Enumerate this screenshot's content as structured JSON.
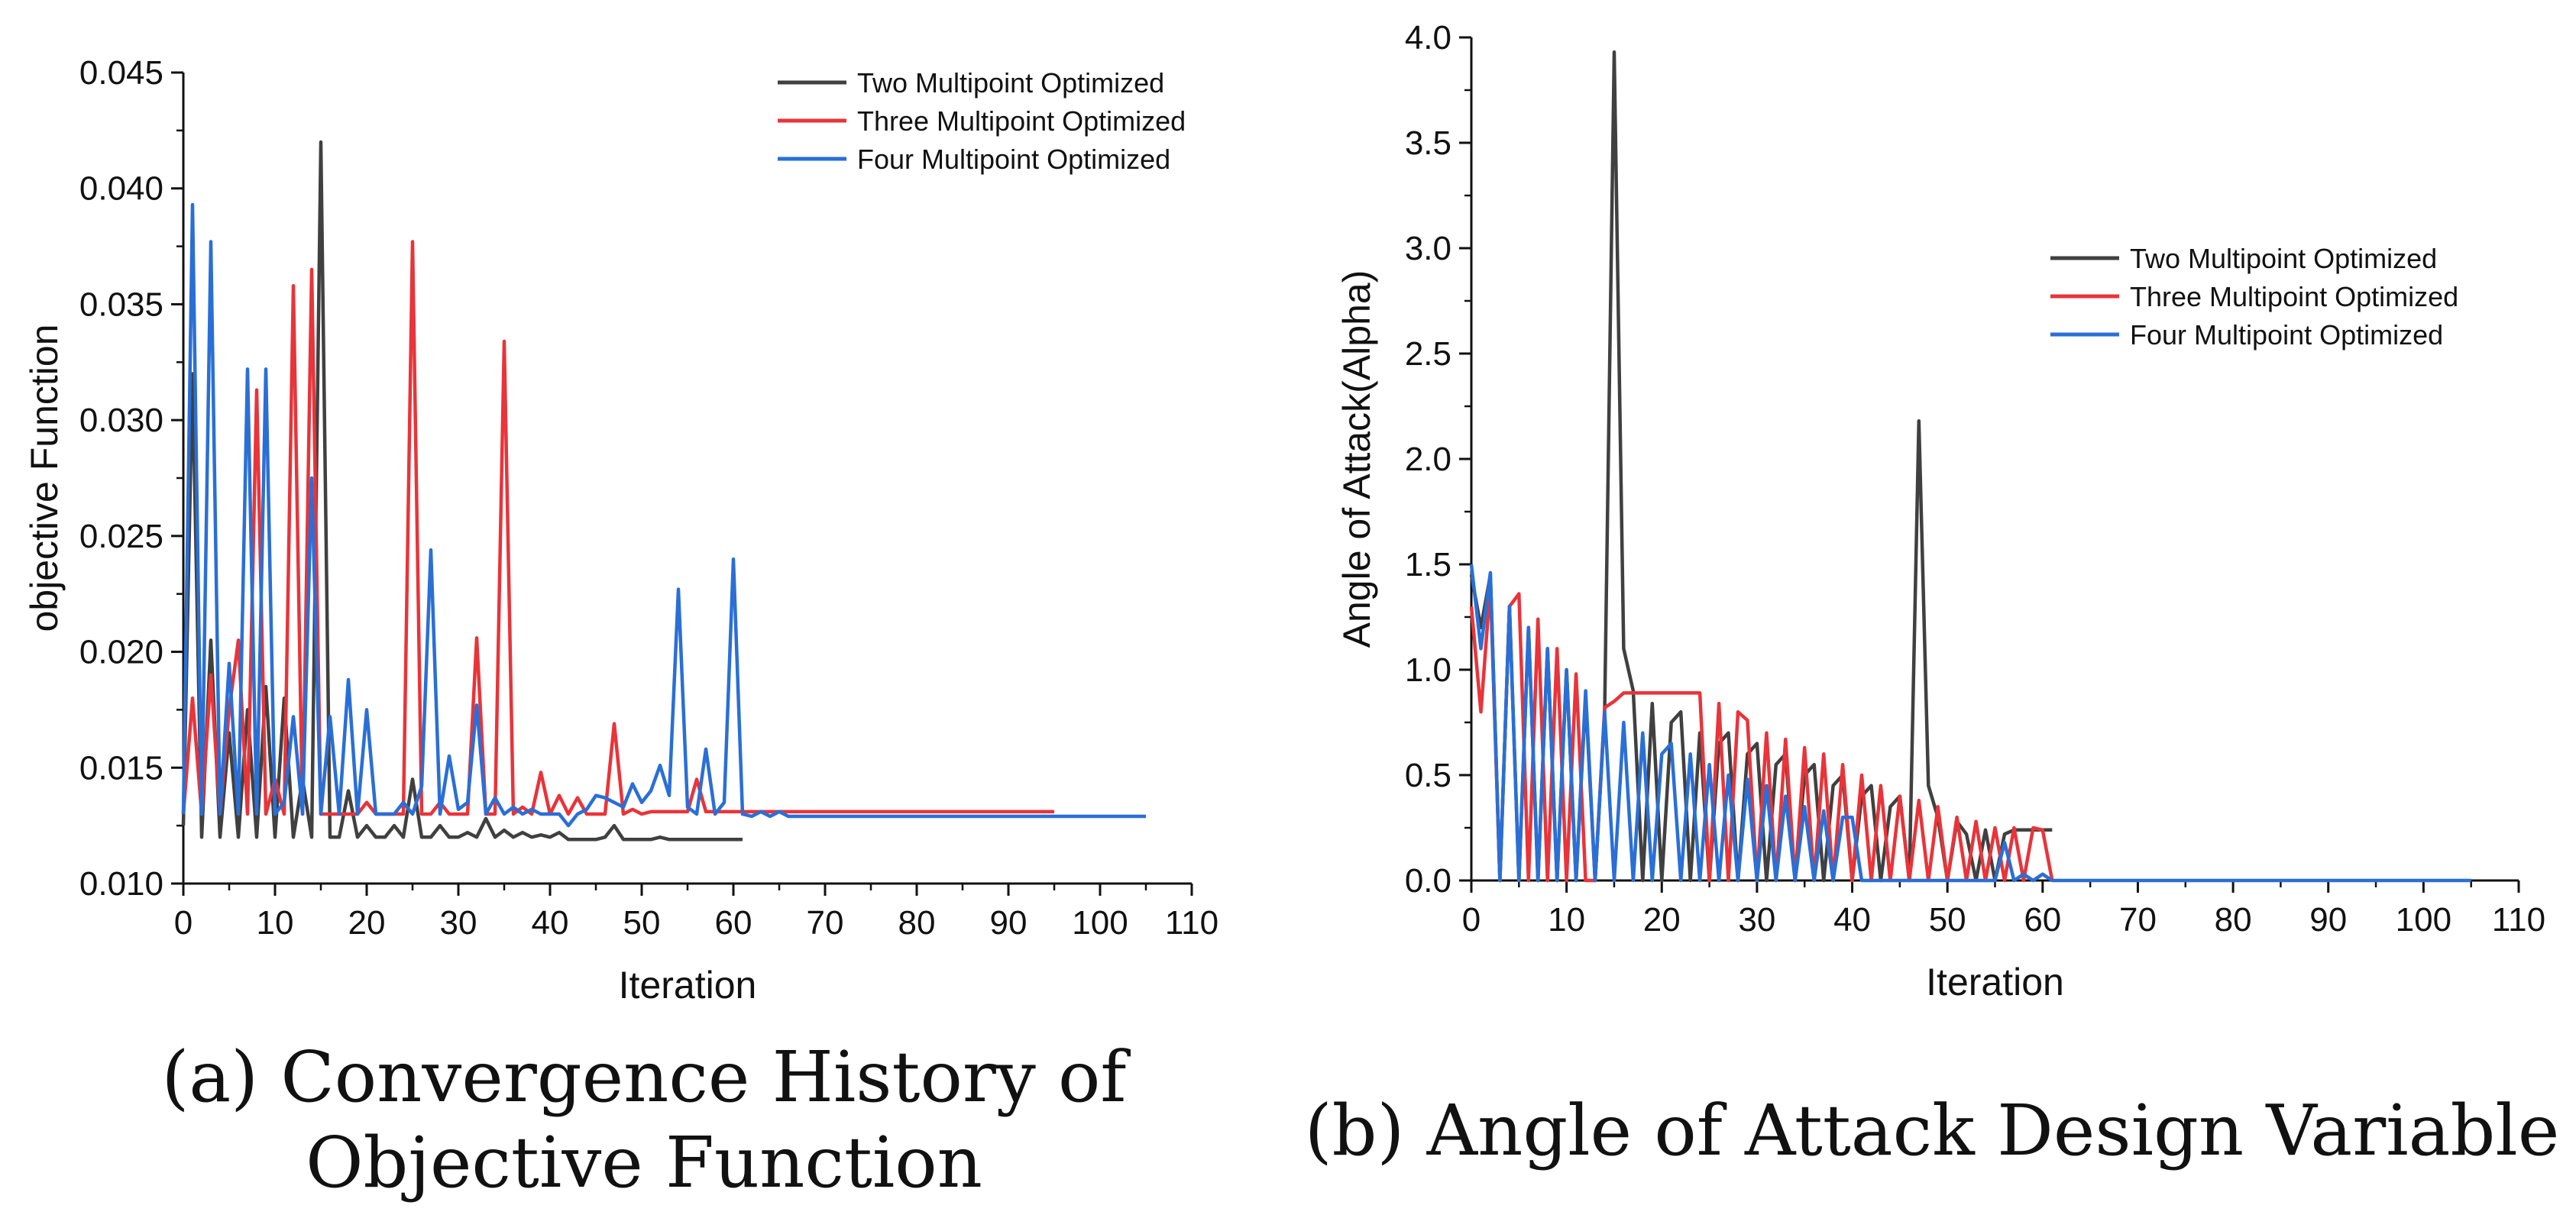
{
  "chart_data": [
    {
      "type": "line",
      "caption": "(a) Convergence History of Objective Function",
      "xlabel": "Iteration",
      "ylabel": "objective Function",
      "xlim": [
        0,
        110
      ],
      "ylim": [
        0.01,
        0.045
      ],
      "xticks": [
        "0",
        "10",
        "20",
        "30",
        "40",
        "50",
        "60",
        "70",
        "80",
        "90",
        "100",
        "110"
      ],
      "yticks": [
        "0.010",
        "0.015",
        "0.020",
        "0.025",
        "0.030",
        "0.035",
        "0.040",
        "0.045"
      ],
      "legend_position": "top-right",
      "series": [
        {
          "name": "Two Multipoint Optimized",
          "color": "#404040",
          "x": [
            0,
            1,
            2,
            3,
            4,
            5,
            6,
            7,
            8,
            9,
            10,
            11,
            12,
            13,
            14,
            15,
            16,
            17,
            18,
            19,
            20,
            21,
            22,
            23,
            24,
            25,
            26,
            27,
            28,
            29,
            30,
            31,
            32,
            33,
            34,
            35,
            36,
            37,
            38,
            39,
            40,
            41,
            42,
            43,
            44,
            45,
            46,
            47,
            48,
            49,
            50,
            51,
            52,
            53,
            54,
            55,
            56,
            57,
            58,
            59,
            60,
            61
          ],
          "y": [
            0.0125,
            0.032,
            0.012,
            0.0205,
            0.012,
            0.0165,
            0.012,
            0.0175,
            0.012,
            0.0185,
            0.012,
            0.018,
            0.012,
            0.0145,
            0.012,
            0.042,
            0.012,
            0.012,
            0.014,
            0.012,
            0.0125,
            0.012,
            0.012,
            0.0125,
            0.012,
            0.0145,
            0.012,
            0.012,
            0.0125,
            0.012,
            0.012,
            0.0122,
            0.012,
            0.0128,
            0.012,
            0.0123,
            0.012,
            0.0122,
            0.012,
            0.0121,
            0.012,
            0.0122,
            0.0119,
            0.0119,
            0.0119,
            0.0119,
            0.012,
            0.0125,
            0.0119,
            0.0119,
            0.0119,
            0.0119,
            0.012,
            0.0119,
            0.0119,
            0.0119,
            0.0119,
            0.0119,
            0.0119,
            0.0119,
            0.0119,
            0.0119
          ]
        },
        {
          "name": "Three Multipoint Optimized",
          "color": "#e8343a",
          "x": [
            0,
            1,
            2,
            3,
            4,
            5,
            6,
            7,
            8,
            9,
            10,
            11,
            12,
            13,
            14,
            15,
            16,
            17,
            18,
            19,
            20,
            21,
            22,
            23,
            24,
            25,
            26,
            27,
            28,
            29,
            30,
            31,
            32,
            33,
            34,
            35,
            36,
            37,
            38,
            39,
            40,
            41,
            42,
            43,
            44,
            45,
            46,
            47,
            48,
            49,
            50,
            51,
            52,
            53,
            54,
            55,
            56,
            57,
            58,
            59,
            60,
            65,
            70,
            75,
            80,
            85,
            90,
            95
          ],
          "y": [
            0.013,
            0.018,
            0.013,
            0.019,
            0.013,
            0.0175,
            0.0205,
            0.013,
            0.0313,
            0.013,
            0.0145,
            0.013,
            0.0358,
            0.013,
            0.0365,
            0.013,
            0.013,
            0.013,
            0.013,
            0.013,
            0.0135,
            0.013,
            0.013,
            0.013,
            0.013,
            0.0377,
            0.013,
            0.013,
            0.0135,
            0.013,
            0.013,
            0.013,
            0.0206,
            0.013,
            0.013,
            0.0334,
            0.013,
            0.0133,
            0.013,
            0.0148,
            0.013,
            0.0138,
            0.013,
            0.0137,
            0.013,
            0.013,
            0.013,
            0.0169,
            0.013,
            0.0132,
            0.013,
            0.0131,
            0.0131,
            0.0131,
            0.0131,
            0.0131,
            0.0145,
            0.0131,
            0.0131,
            0.0131,
            0.0131,
            0.0131,
            0.0131,
            0.0131,
            0.0131,
            0.0131,
            0.0131,
            0.0131
          ]
        },
        {
          "name": "Four Multipoint Optimized",
          "color": "#2a6fd6",
          "x": [
            0,
            1,
            2,
            3,
            4,
            5,
            6,
            7,
            8,
            9,
            10,
            11,
            12,
            13,
            14,
            15,
            16,
            17,
            18,
            19,
            20,
            21,
            22,
            23,
            24,
            25,
            26,
            27,
            28,
            29,
            30,
            31,
            32,
            33,
            34,
            35,
            36,
            37,
            38,
            39,
            40,
            41,
            42,
            43,
            44,
            45,
            46,
            47,
            48,
            49,
            50,
            51,
            52,
            53,
            54,
            55,
            56,
            57,
            58,
            59,
            60,
            61,
            62,
            63,
            64,
            65,
            66,
            67,
            68,
            69,
            70,
            75,
            80,
            85,
            90,
            95,
            100,
            105
          ],
          "y": [
            0.013,
            0.0393,
            0.013,
            0.0377,
            0.013,
            0.0195,
            0.013,
            0.0322,
            0.013,
            0.0322,
            0.013,
            0.0135,
            0.0172,
            0.013,
            0.0275,
            0.013,
            0.0172,
            0.013,
            0.0188,
            0.013,
            0.0175,
            0.013,
            0.013,
            0.013,
            0.0135,
            0.013,
            0.0142,
            0.0244,
            0.013,
            0.0155,
            0.0132,
            0.0135,
            0.0177,
            0.013,
            0.0137,
            0.013,
            0.0133,
            0.013,
            0.0132,
            0.013,
            0.013,
            0.013,
            0.0125,
            0.013,
            0.0132,
            0.0138,
            0.0137,
            0.0135,
            0.0133,
            0.0143,
            0.0135,
            0.014,
            0.0151,
            0.0138,
            0.0227,
            0.0133,
            0.013,
            0.0158,
            0.013,
            0.0135,
            0.024,
            0.013,
            0.0129,
            0.0131,
            0.0129,
            0.0131,
            0.0129,
            0.0129,
            0.0129,
            0.0129,
            0.0129,
            0.0129,
            0.0129,
            0.0129,
            0.0129,
            0.0129,
            0.0129,
            0.0129
          ]
        }
      ]
    },
    {
      "type": "line",
      "caption": "(b) Angle of Attack Design Variable",
      "xlabel": "Iteration",
      "ylabel": "Angle of Attack(Alpha)",
      "xlim": [
        0,
        110
      ],
      "ylim": [
        0.0,
        4.0
      ],
      "xticks": [
        "0",
        "10",
        "20",
        "30",
        "40",
        "50",
        "60",
        "70",
        "80",
        "90",
        "100",
        "110"
      ],
      "yticks": [
        "0.0",
        "0.5",
        "1.0",
        "1.5",
        "2.0",
        "2.5",
        "3.0",
        "3.5",
        "4.0"
      ],
      "legend_position": "upper-right",
      "series": [
        {
          "name": "Two Multipoint Optimized",
          "color": "#404040",
          "x": [
            0,
            1,
            2,
            3,
            4,
            5,
            6,
            7,
            8,
            9,
            10,
            11,
            12,
            13,
            14,
            15,
            16,
            17,
            18,
            19,
            20,
            21,
            22,
            23,
            24,
            25,
            26,
            27,
            28,
            29,
            30,
            31,
            32,
            33,
            34,
            35,
            36,
            37,
            38,
            39,
            40,
            41,
            42,
            43,
            44,
            45,
            46,
            47,
            48,
            49,
            50,
            51,
            52,
            53,
            54,
            55,
            56,
            57,
            58,
            59,
            60,
            61
          ],
          "y": [
            1.45,
            1.2,
            1.45,
            0.0,
            1.3,
            0.0,
            1.2,
            0.0,
            1.1,
            0.0,
            1.0,
            0.0,
            0.87,
            0.0,
            0.8,
            3.93,
            1.1,
            0.9,
            0.0,
            0.84,
            0.0,
            0.75,
            0.8,
            0.0,
            0.7,
            0.0,
            0.65,
            0.7,
            0.0,
            0.6,
            0.65,
            0.0,
            0.55,
            0.6,
            0.0,
            0.5,
            0.55,
            0.0,
            0.45,
            0.5,
            0.0,
            0.4,
            0.45,
            0.0,
            0.35,
            0.4,
            0.0,
            2.18,
            0.45,
            0.3,
            0.0,
            0.28,
            0.22,
            0.0,
            0.24,
            0.0,
            0.22,
            0.24,
            0.24,
            0.24,
            0.24,
            0.24
          ]
        },
        {
          "name": "Three Multipoint Optimized",
          "color": "#e8343a",
          "x": [
            0,
            1,
            2,
            3,
            4,
            5,
            6,
            7,
            8,
            9,
            10,
            11,
            12,
            13,
            14,
            15,
            16,
            17,
            18,
            19,
            20,
            21,
            22,
            23,
            24,
            25,
            26,
            27,
            28,
            29,
            30,
            31,
            32,
            33,
            34,
            35,
            36,
            37,
            38,
            39,
            40,
            41,
            42,
            43,
            44,
            45,
            46,
            47,
            48,
            49,
            50,
            51,
            52,
            53,
            54,
            55,
            56,
            57,
            58,
            59,
            60,
            61
          ],
          "y": [
            1.3,
            0.8,
            1.4,
            0.0,
            1.3,
            1.36,
            0.0,
            1.24,
            0.0,
            1.1,
            0.0,
            0.98,
            0.0,
            0.0,
            0.82,
            0.85,
            0.89,
            0.89,
            0.89,
            0.89,
            0.89,
            0.89,
            0.89,
            0.89,
            0.89,
            0.0,
            0.84,
            0.0,
            0.8,
            0.76,
            0.0,
            0.7,
            0.0,
            0.67,
            0.0,
            0.63,
            0.0,
            0.6,
            0.0,
            0.55,
            0.0,
            0.5,
            0.0,
            0.45,
            0.0,
            0.4,
            0.0,
            0.38,
            0.0,
            0.35,
            0.0,
            0.3,
            0.0,
            0.28,
            0.0,
            0.25,
            0.0,
            0.25,
            0.0,
            0.25,
            0.24,
            0.0
          ]
        },
        {
          "name": "Four Multipoint Optimized",
          "color": "#2a6fd6",
          "x": [
            0,
            1,
            2,
            3,
            4,
            5,
            6,
            7,
            8,
            9,
            10,
            11,
            12,
            13,
            14,
            15,
            16,
            17,
            18,
            19,
            20,
            21,
            22,
            23,
            24,
            25,
            26,
            27,
            28,
            29,
            30,
            31,
            32,
            33,
            34,
            35,
            36,
            37,
            38,
            39,
            40,
            41,
            42,
            43,
            44,
            45,
            46,
            47,
            48,
            49,
            50,
            51,
            52,
            53,
            54,
            55,
            56,
            57,
            58,
            59,
            60,
            61,
            62,
            63,
            70,
            80,
            90,
            100,
            105
          ],
          "y": [
            1.5,
            1.1,
            1.46,
            0.0,
            1.3,
            0.0,
            1.2,
            0.0,
            1.1,
            0.0,
            1.0,
            0.0,
            0.9,
            0.0,
            0.8,
            0.0,
            0.75,
            0.0,
            0.7,
            0.0,
            0.6,
            0.65,
            0.0,
            0.6,
            0.0,
            0.55,
            0.0,
            0.5,
            0.0,
            0.48,
            0.0,
            0.45,
            0.0,
            0.4,
            0.0,
            0.35,
            0.0,
            0.33,
            0.0,
            0.3,
            0.3,
            0.0,
            0.0,
            0.0,
            0.0,
            0.0,
            0.0,
            0.0,
            0.0,
            0.0,
            0.0,
            0.0,
            0.0,
            0.0,
            0.0,
            0.0,
            0.18,
            0.0,
            0.03,
            0.0,
            0.03,
            0.0,
            0.0,
            0.0,
            0.0,
            0.0,
            0.0,
            0.0,
            0.0
          ]
        }
      ]
    }
  ]
}
